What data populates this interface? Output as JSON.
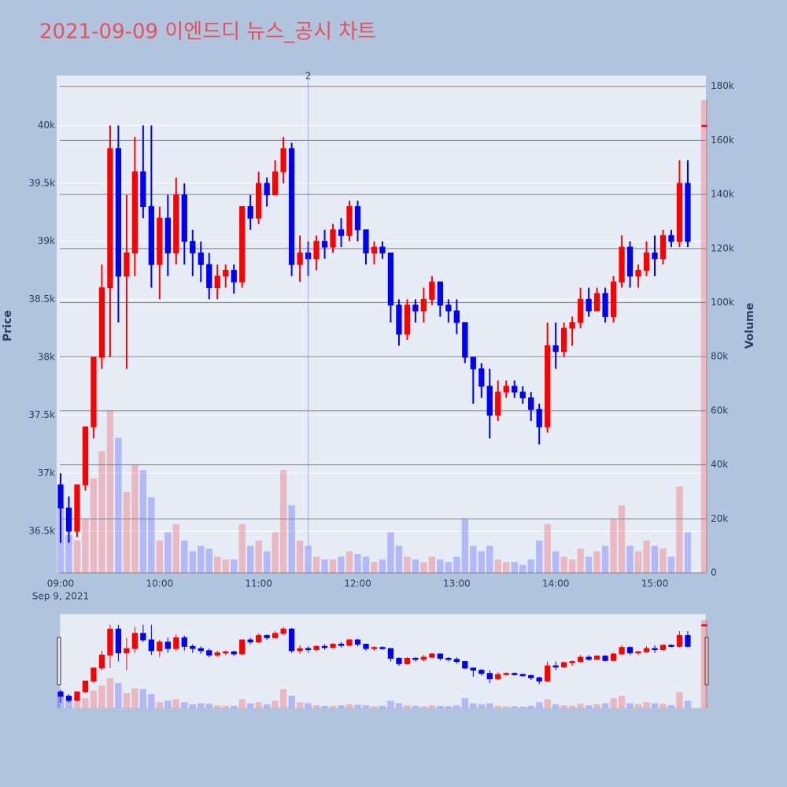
{
  "chart_data": {
    "type": "candlestick",
    "title": "2021-09-09 이엔드디 뉴스_공시 차트",
    "y_label": "Price",
    "y2_label": "Volume",
    "x_date_label": "Sep 9, 2021",
    "increasing_color": "#ff0000",
    "decreasing_color": "#0000ff",
    "grid": true,
    "rangeslider": true,
    "x": [
      "09:00",
      "09:05",
      "09:10",
      "09:15",
      "09:20",
      "09:25",
      "09:30",
      "09:35",
      "09:40",
      "09:45",
      "09:50",
      "09:55",
      "10:00",
      "10:05",
      "10:10",
      "10:15",
      "10:20",
      "10:25",
      "10:30",
      "10:35",
      "10:40",
      "10:45",
      "10:50",
      "10:55",
      "11:00",
      "11:05",
      "11:10",
      "11:15",
      "11:20",
      "11:25",
      "11:30",
      "11:35",
      "11:40",
      "11:45",
      "11:50",
      "11:55",
      "12:00",
      "12:05",
      "12:10",
      "12:15",
      "12:20",
      "12:25",
      "12:30",
      "12:35",
      "12:40",
      "12:45",
      "12:50",
      "12:55",
      "13:00",
      "13:05",
      "13:10",
      "13:15",
      "13:20",
      "13:25",
      "13:30",
      "13:35",
      "13:40",
      "13:45",
      "13:50",
      "13:55",
      "14:00",
      "14:05",
      "14:10",
      "14:15",
      "14:20",
      "14:25",
      "14:30",
      "14:35",
      "14:40",
      "14:45",
      "14:50",
      "14:55",
      "15:00",
      "15:05",
      "15:10",
      "15:15",
      "15:20",
      "15:30"
    ],
    "open": [
      36900,
      36700,
      36500,
      36900,
      37400,
      38000,
      38600,
      39800,
      38700,
      38900,
      39600,
      39300,
      38800,
      39200,
      38900,
      39400,
      39000,
      38900,
      38800,
      38600,
      38700,
      38750,
      38650,
      39300,
      39200,
      39500,
      39400,
      39600,
      39800,
      38800,
      38900,
      38850,
      39000,
      38950,
      39100,
      39050,
      39300,
      39100,
      38900,
      38950,
      38900,
      38450,
      38200,
      38450,
      38400,
      38500,
      38650,
      38450,
      38400,
      38300,
      38000,
      37900,
      37750,
      37500,
      37700,
      37750,
      37700,
      37650,
      37550,
      37400,
      38100,
      38050,
      38250,
      38300,
      38500,
      38400,
      38550,
      38350,
      38650,
      38950,
      38700,
      38750,
      38900,
      38850,
      39050,
      39000,
      39500,
      40000
    ],
    "high": [
      37000,
      36800,
      36900,
      37400,
      38000,
      38800,
      40000,
      40000,
      39400,
      39900,
      40000,
      40000,
      39300,
      39400,
      39550,
      39500,
      39100,
      39000,
      38900,
      38800,
      38800,
      38800,
      39300,
      39400,
      39600,
      39550,
      39700,
      39900,
      39850,
      39050,
      39000,
      39050,
      39100,
      39150,
      39200,
      39350,
      39350,
      39100,
      39000,
      39000,
      38900,
      38500,
      38500,
      38500,
      38600,
      38700,
      38650,
      38500,
      38500,
      38300,
      38000,
      37950,
      37900,
      37800,
      37800,
      37800,
      37750,
      37700,
      37600,
      38300,
      38300,
      38300,
      38350,
      38600,
      38600,
      38600,
      38600,
      38700,
      39050,
      39000,
      38800,
      39000,
      39050,
      39100,
      39100,
      39700,
      39700,
      40000
    ],
    "low": [
      36400,
      36400,
      36450,
      36850,
      37300,
      37900,
      38000,
      38300,
      37900,
      38700,
      39200,
      38600,
      38500,
      38700,
      38800,
      38800,
      38700,
      38650,
      38500,
      38500,
      38600,
      38550,
      38600,
      39100,
      39150,
      39300,
      39400,
      39500,
      38700,
      38650,
      38700,
      38750,
      38850,
      38900,
      38950,
      39000,
      39000,
      38800,
      38800,
      38850,
      38300,
      38100,
      38150,
      38300,
      38300,
      38450,
      38350,
      38300,
      38200,
      37950,
      37600,
      37650,
      37300,
      37450,
      37650,
      37650,
      37600,
      37450,
      37250,
      37350,
      37900,
      38000,
      38100,
      38250,
      38350,
      38400,
      38300,
      38300,
      38600,
      38600,
      38600,
      38700,
      38700,
      38800,
      38950,
      38950,
      38950,
      40000
    ],
    "close": [
      36700,
      36500,
      36900,
      37400,
      38000,
      38600,
      39800,
      38700,
      38900,
      39600,
      39300,
      38800,
      39200,
      38900,
      39400,
      39000,
      38900,
      38800,
      38600,
      38700,
      38750,
      38650,
      39300,
      39200,
      39500,
      39400,
      39600,
      39800,
      38800,
      38900,
      38850,
      39000,
      38950,
      39100,
      39050,
      39300,
      39100,
      38900,
      38950,
      38900,
      38450,
      38200,
      38450,
      38400,
      38500,
      38650,
      38450,
      38400,
      38300,
      38000,
      37900,
      37750,
      37500,
      37700,
      37750,
      37700,
      37650,
      37550,
      37400,
      38100,
      38050,
      38250,
      38300,
      38500,
      38400,
      38550,
      38350,
      38650,
      38950,
      38700,
      38750,
      38900,
      38850,
      39050,
      39000,
      39500,
      39000,
      40000
    ],
    "volume": [
      25000,
      14000,
      12000,
      20000,
      35000,
      45000,
      60000,
      50000,
      30000,
      40000,
      38000,
      28000,
      12000,
      15000,
      18000,
      12000,
      8000,
      10000,
      9000,
      6000,
      5000,
      5000,
      18000,
      10000,
      12000,
      8000,
      15000,
      38000,
      25000,
      12000,
      10000,
      6000,
      5000,
      5000,
      6000,
      8000,
      7000,
      6000,
      4000,
      5000,
      15000,
      10000,
      6000,
      5000,
      4000,
      6000,
      5000,
      4000,
      6000,
      20000,
      10000,
      8000,
      10000,
      5000,
      4000,
      4000,
      3000,
      5000,
      12000,
      18000,
      8000,
      6000,
      5000,
      9000,
      6000,
      8000,
      10000,
      20000,
      25000,
      10000,
      8000,
      12000,
      10000,
      9000,
      6000,
      32000,
      15000,
      175000
    ],
    "xlim": [
      "09:00",
      "15:31"
    ],
    "xticks": [
      "09:00",
      "10:00",
      "11:00",
      "12:00",
      "13:00",
      "14:00",
      "15:00"
    ],
    "ylim": [
      36140,
      40430
    ],
    "yticks": [
      {
        "value": 36500,
        "label": "36.5k"
      },
      {
        "value": 37000,
        "label": "37k"
      },
      {
        "value": 37500,
        "label": "37.5k"
      },
      {
        "value": 38000,
        "label": "38k"
      },
      {
        "value": 38500,
        "label": "38.5k"
      },
      {
        "value": 39000,
        "label": "39k"
      },
      {
        "value": 39500,
        "label": "39.5k"
      },
      {
        "value": 40000,
        "label": "40k"
      }
    ],
    "y2lim": [
      0,
      184000
    ],
    "y2ticks": [
      0,
      {
        "value": 20000,
        "label": "20k"
      },
      {
        "value": 40000,
        "label": "40k"
      },
      {
        "value": 60000,
        "label": "60k"
      },
      {
        "value": 80000,
        "label": "80k"
      },
      {
        "value": 100000,
        "label": "100k"
      },
      {
        "value": 120000,
        "label": "120k"
      },
      {
        "value": 140000,
        "label": "140k"
      },
      {
        "value": 160000,
        "label": "160k"
      },
      {
        "value": 180000,
        "label": "180k"
      }
    ],
    "annotations": [
      {
        "x": "11:30",
        "text": "2"
      }
    ]
  }
}
